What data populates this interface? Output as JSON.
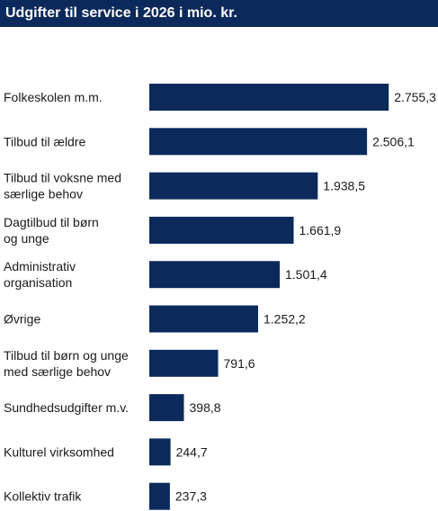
{
  "chart_data": {
    "type": "bar",
    "orientation": "horizontal",
    "title": "Udgifter til service i 2026 i mio. kr.",
    "categories": [
      [
        "Folkeskolen m.m."
      ],
      [
        "Tilbud til ældre"
      ],
      [
        "Tilbud til voksne med",
        "særlige behov"
      ],
      [
        "Dagtilbud til børn",
        "og unge"
      ],
      [
        "Administrativ",
        "organisation"
      ],
      [
        "Øvrige"
      ],
      [
        "Tilbud til børn og unge",
        "med særlige behov"
      ],
      [
        "Sundhedsudgifter m.v."
      ],
      [
        "Kulturel virksomhed"
      ],
      [
        "Kollektiv trafik"
      ]
    ],
    "values": [
      2755.3,
      2506.1,
      1938.5,
      1661.9,
      1501.4,
      1252.2,
      791.6,
      398.8,
      244.7,
      237.3
    ],
    "value_labels": [
      "2.755,3",
      "2.506,1",
      "1.938,5",
      "1.661,9",
      "1.501,4",
      "1.252,2",
      "791,6",
      "398,8",
      "244,7",
      "237,3"
    ],
    "xlabel": "",
    "ylabel": "",
    "grid": false,
    "legend": "none",
    "colors": {
      "bar": "#0b2a5b",
      "title_background": "#0b2a5b",
      "title_text": "#ffffff",
      "label_text": "#1a1a1a"
    }
  }
}
